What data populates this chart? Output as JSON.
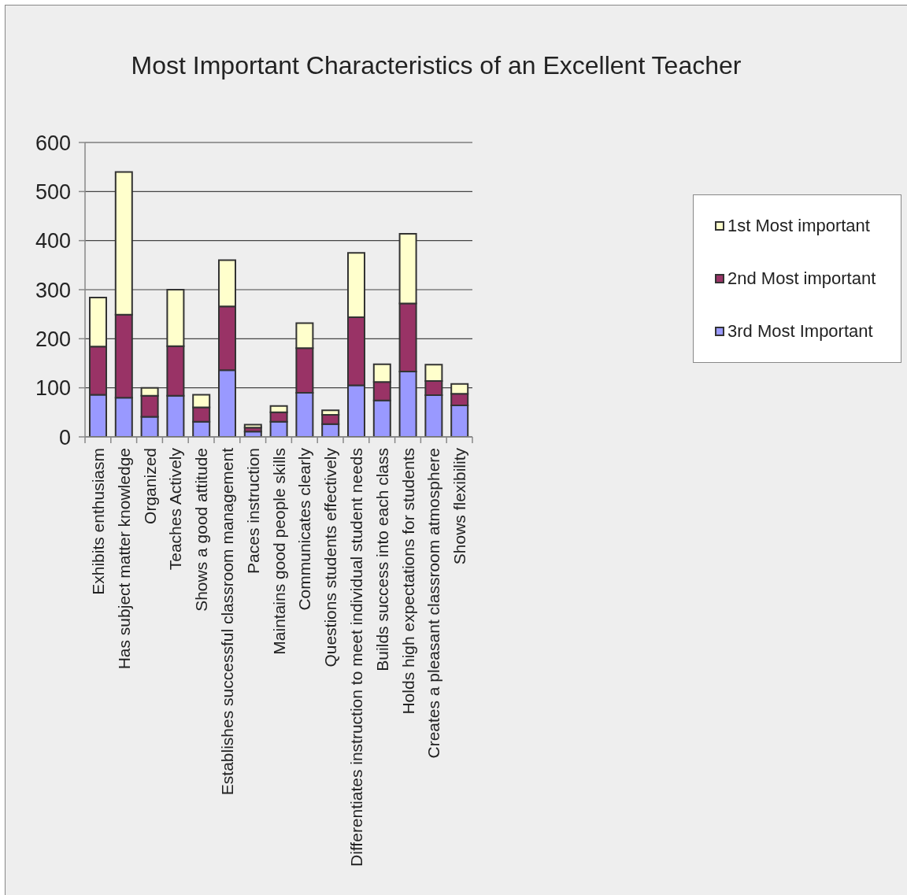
{
  "chart_data": {
    "type": "bar",
    "title": "Most Important Characteristics of an Excellent Teacher",
    "categories": [
      "Exhibits enthusiasm",
      "Has subject matter knowledge",
      "Organized",
      "Teaches Actively",
      "Shows a good attitude",
      "Establishes successful classroom management",
      "Paces instruction",
      "Maintains good people skills",
      "Communicates clearly",
      "Questions students effectively",
      "Differentiates instruction to meet individual student needs",
      "Builds success into each class",
      "Holds high expectations for students",
      "Creates a pleasant classroom atmosphere",
      "Shows flexibility"
    ],
    "stacked": true,
    "series": [
      {
        "name": "3rd Most Important",
        "color": "#9999ff",
        "values": [
          86,
          80,
          41,
          84,
          31,
          136,
          11,
          31,
          90,
          26,
          105,
          74,
          133,
          85,
          64
        ]
      },
      {
        "name": "2nd Most important",
        "color": "#993366",
        "values": [
          98,
          169,
          43,
          101,
          29,
          130,
          8,
          19,
          91,
          19,
          139,
          38,
          139,
          29,
          24
        ]
      },
      {
        "name": "1st Most important",
        "color": "#ffffcc",
        "values": [
          100,
          291,
          16,
          115,
          26,
          94,
          6,
          13,
          51,
          9,
          131,
          36,
          142,
          33,
          20
        ]
      }
    ],
    "ylim": [
      0,
      600
    ],
    "yticks": [
      0,
      100,
      200,
      300,
      400,
      500,
      600
    ],
    "grid": "y",
    "legend": "right"
  }
}
